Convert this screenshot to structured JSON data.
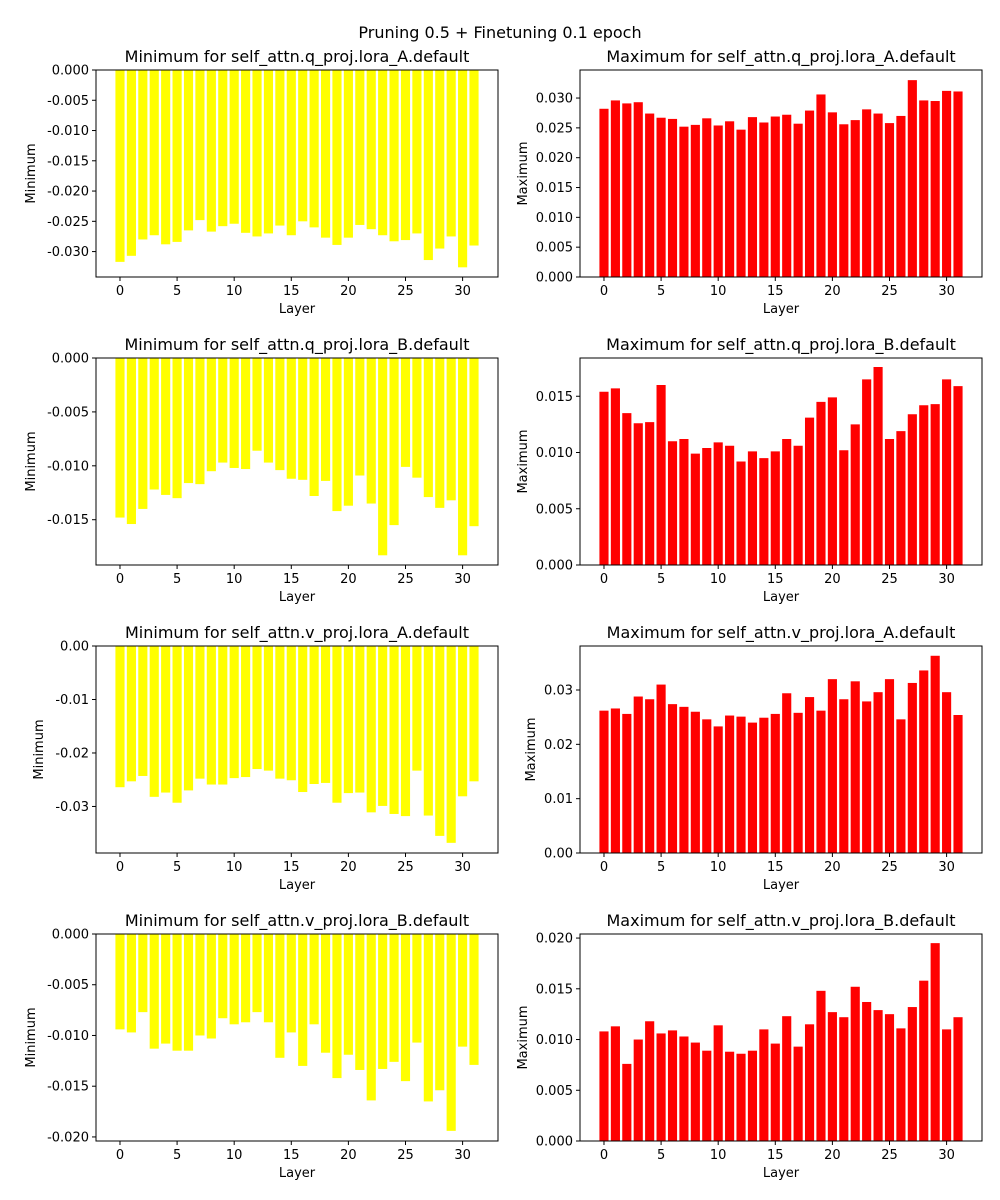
{
  "figure_title": "Pruning 0.5 + Finetuning 0.1 epoch",
  "chart_data": [
    {
      "type": "bar",
      "title": "Minimum for self_attn.q_proj.lora_A.default",
      "xlabel": "Layer",
      "ylabel": "Minimum",
      "color": "#ffff00",
      "x": [
        0,
        1,
        2,
        3,
        4,
        5,
        6,
        7,
        8,
        9,
        10,
        11,
        12,
        13,
        14,
        15,
        16,
        17,
        18,
        19,
        20,
        21,
        22,
        23,
        24,
        25,
        26,
        27,
        28,
        29,
        30,
        31
      ],
      "values": [
        -0.0317,
        -0.0307,
        -0.028,
        -0.0273,
        -0.0288,
        -0.0284,
        -0.0265,
        -0.0248,
        -0.0267,
        -0.0258,
        -0.0254,
        -0.0269,
        -0.0275,
        -0.027,
        -0.0257,
        -0.0273,
        -0.025,
        -0.026,
        -0.0277,
        -0.0289,
        -0.0277,
        -0.0256,
        -0.0263,
        -0.0273,
        -0.0283,
        -0.0281,
        -0.027,
        -0.0314,
        -0.0295,
        -0.0275,
        -0.0326,
        -0.029
      ],
      "xlim": [
        -2.1,
        33.1
      ],
      "ylim": [
        -0.0342,
        0.0
      ],
      "xticks": [
        0,
        5,
        10,
        15,
        20,
        25,
        30
      ],
      "yticks": [
        "0.000",
        "-0.005",
        "-0.010",
        "-0.015",
        "-0.020",
        "-0.025",
        "-0.030"
      ]
    },
    {
      "type": "bar",
      "title": "Maximum for self_attn.q_proj.lora_A.default",
      "xlabel": "Layer",
      "ylabel": "Maximum",
      "color": "#ff0000",
      "x": [
        0,
        1,
        2,
        3,
        4,
        5,
        6,
        7,
        8,
        9,
        10,
        11,
        12,
        13,
        14,
        15,
        16,
        17,
        18,
        19,
        20,
        21,
        22,
        23,
        24,
        25,
        26,
        27,
        28,
        29,
        30,
        31
      ],
      "values": [
        0.0282,
        0.0296,
        0.0291,
        0.0293,
        0.0274,
        0.0267,
        0.0265,
        0.0252,
        0.0255,
        0.0266,
        0.0254,
        0.0261,
        0.0247,
        0.0268,
        0.0259,
        0.0269,
        0.0272,
        0.0257,
        0.0279,
        0.0306,
        0.0276,
        0.0256,
        0.0263,
        0.0281,
        0.0274,
        0.0258,
        0.027,
        0.033,
        0.0296,
        0.0295,
        0.0312,
        0.0311
      ],
      "xlim": [
        -2.1,
        33.1
      ],
      "ylim": [
        0.0,
        0.0347
      ],
      "xticks": [
        0,
        5,
        10,
        15,
        20,
        25,
        30
      ],
      "yticks": [
        "0.000",
        "0.005",
        "0.010",
        "0.015",
        "0.020",
        "0.025",
        "0.030"
      ]
    },
    {
      "type": "bar",
      "title": "Minimum for self_attn.q_proj.lora_B.default",
      "xlabel": "Layer",
      "ylabel": "Minimum",
      "color": "#ffff00",
      "x": [
        0,
        1,
        2,
        3,
        4,
        5,
        6,
        7,
        8,
        9,
        10,
        11,
        12,
        13,
        14,
        15,
        16,
        17,
        18,
        19,
        20,
        21,
        22,
        23,
        24,
        25,
        26,
        27,
        28,
        29,
        30,
        31
      ],
      "values": [
        -0.0148,
        -0.0154,
        -0.014,
        -0.0122,
        -0.0127,
        -0.013,
        -0.0116,
        -0.0117,
        -0.0105,
        -0.0097,
        -0.0102,
        -0.0103,
        -0.0086,
        -0.0097,
        -0.0104,
        -0.0112,
        -0.0113,
        -0.0128,
        -0.0114,
        -0.0142,
        -0.0137,
        -0.0109,
        -0.0135,
        -0.0183,
        -0.0155,
        -0.0101,
        -0.0111,
        -0.0129,
        -0.0139,
        -0.0132,
        -0.0183,
        -0.0156
      ],
      "xlim": [
        -2.1,
        33.1
      ],
      "ylim": [
        -0.0192,
        0.0
      ],
      "xticks": [
        0,
        5,
        10,
        15,
        20,
        25,
        30
      ],
      "yticks": [
        "0.000",
        "-0.005",
        "-0.010",
        "-0.015"
      ]
    },
    {
      "type": "bar",
      "title": "Maximum for self_attn.q_proj.lora_B.default",
      "xlabel": "Layer",
      "ylabel": "Maximum",
      "color": "#ff0000",
      "x": [
        0,
        1,
        2,
        3,
        4,
        5,
        6,
        7,
        8,
        9,
        10,
        11,
        12,
        13,
        14,
        15,
        16,
        17,
        18,
        19,
        20,
        21,
        22,
        23,
        24,
        25,
        26,
        27,
        28,
        29,
        30,
        31
      ],
      "values": [
        0.0154,
        0.0157,
        0.0135,
        0.0126,
        0.0127,
        0.016,
        0.011,
        0.0112,
        0.0099,
        0.0104,
        0.0109,
        0.0106,
        0.0092,
        0.0101,
        0.0095,
        0.0101,
        0.0112,
        0.0106,
        0.0131,
        0.0145,
        0.0149,
        0.0102,
        0.0125,
        0.0165,
        0.0176,
        0.0112,
        0.0119,
        0.0134,
        0.0142,
        0.0143,
        0.0165,
        0.0159
      ],
      "xlim": [
        -2.1,
        33.1
      ],
      "ylim": [
        0.0,
        0.0184
      ],
      "xticks": [
        0,
        5,
        10,
        15,
        20,
        25,
        30
      ],
      "yticks": [
        "0.000",
        "0.005",
        "0.010",
        "0.015"
      ]
    },
    {
      "type": "bar",
      "title": "Minimum for self_attn.v_proj.lora_A.default",
      "xlabel": "Layer",
      "ylabel": "Minimum",
      "color": "#ffff00",
      "x": [
        0,
        1,
        2,
        3,
        4,
        5,
        6,
        7,
        8,
        9,
        10,
        11,
        12,
        13,
        14,
        15,
        16,
        17,
        18,
        19,
        20,
        21,
        22,
        23,
        24,
        25,
        26,
        27,
        28,
        29,
        30,
        31
      ],
      "values": [
        -0.0264,
        -0.0253,
        -0.0243,
        -0.0282,
        -0.0274,
        -0.0293,
        -0.027,
        -0.0248,
        -0.0259,
        -0.0259,
        -0.0247,
        -0.0245,
        -0.023,
        -0.0233,
        -0.0248,
        -0.0251,
        -0.0273,
        -0.0258,
        -0.0256,
        -0.0293,
        -0.0275,
        -0.0274,
        -0.0311,
        -0.0299,
        -0.0314,
        -0.0318,
        -0.0233,
        -0.0317,
        -0.0355,
        -0.0368,
        -0.0281,
        -0.0253
      ],
      "xlim": [
        -2.1,
        33.1
      ],
      "ylim": [
        -0.0387,
        0.0
      ],
      "xticks": [
        0,
        5,
        10,
        15,
        20,
        25,
        30
      ],
      "yticks": [
        "0.00",
        "-0.01",
        "-0.02",
        "-0.03"
      ]
    },
    {
      "type": "bar",
      "title": "Maximum for self_attn.v_proj.lora_A.default",
      "xlabel": "Layer",
      "ylabel": "Maximum",
      "color": "#ff0000",
      "x": [
        0,
        1,
        2,
        3,
        4,
        5,
        6,
        7,
        8,
        9,
        10,
        11,
        12,
        13,
        14,
        15,
        16,
        17,
        18,
        19,
        20,
        21,
        22,
        23,
        24,
        25,
        26,
        27,
        28,
        29,
        30,
        31
      ],
      "values": [
        0.0262,
        0.0266,
        0.0256,
        0.0288,
        0.0283,
        0.031,
        0.0274,
        0.0269,
        0.026,
        0.0246,
        0.0233,
        0.0253,
        0.0251,
        0.024,
        0.0249,
        0.0256,
        0.0294,
        0.0258,
        0.0287,
        0.0262,
        0.032,
        0.0283,
        0.0316,
        0.0279,
        0.0296,
        0.032,
        0.0246,
        0.0313,
        0.0336,
        0.0363,
        0.0296,
        0.0254
      ],
      "xlim": [
        -2.1,
        33.1
      ],
      "ylim": [
        0.0,
        0.0381
      ],
      "xticks": [
        0,
        5,
        10,
        15,
        20,
        25,
        30
      ],
      "yticks": [
        "0.00",
        "0.01",
        "0.02",
        "0.03"
      ]
    },
    {
      "type": "bar",
      "title": "Minimum for self_attn.v_proj.lora_B.default",
      "xlabel": "Layer",
      "ylabel": "Minimum",
      "color": "#ffff00",
      "x": [
        0,
        1,
        2,
        3,
        4,
        5,
        6,
        7,
        8,
        9,
        10,
        11,
        12,
        13,
        14,
        15,
        16,
        17,
        18,
        19,
        20,
        21,
        22,
        23,
        24,
        25,
        26,
        27,
        28,
        29,
        30,
        31
      ],
      "values": [
        -0.0094,
        -0.0097,
        -0.0077,
        -0.0113,
        -0.0108,
        -0.0115,
        -0.0115,
        -0.01,
        -0.0103,
        -0.0083,
        -0.0089,
        -0.0087,
        -0.0077,
        -0.0087,
        -0.0122,
        -0.0097,
        -0.013,
        -0.0089,
        -0.0117,
        -0.0142,
        -0.0119,
        -0.0134,
        -0.0164,
        -0.0133,
        -0.0126,
        -0.0145,
        -0.0107,
        -0.0165,
        -0.0154,
        -0.0194,
        -0.0111,
        -0.0129
      ],
      "xlim": [
        -2.1,
        33.1
      ],
      "ylim": [
        -0.0204,
        0.0
      ],
      "xticks": [
        0,
        5,
        10,
        15,
        20,
        25,
        30
      ],
      "yticks": [
        "0.000",
        "-0.005",
        "-0.010",
        "-0.015",
        "-0.020"
      ]
    },
    {
      "type": "bar",
      "title": "Maximum for self_attn.v_proj.lora_B.default",
      "xlabel": "Layer",
      "ylabel": "Maximum",
      "color": "#ff0000",
      "x": [
        0,
        1,
        2,
        3,
        4,
        5,
        6,
        7,
        8,
        9,
        10,
        11,
        12,
        13,
        14,
        15,
        16,
        17,
        18,
        19,
        20,
        21,
        22,
        23,
        24,
        25,
        26,
        27,
        28,
        29,
        30,
        31
      ],
      "values": [
        0.0108,
        0.0113,
        0.0076,
        0.01,
        0.0118,
        0.0106,
        0.0109,
        0.0103,
        0.0097,
        0.0089,
        0.0114,
        0.0088,
        0.0086,
        0.0089,
        0.011,
        0.0096,
        0.0123,
        0.0093,
        0.0115,
        0.0148,
        0.0127,
        0.0122,
        0.0152,
        0.0137,
        0.0129,
        0.0125,
        0.0111,
        0.0132,
        0.0158,
        0.0195,
        0.011,
        0.0122
      ],
      "xlim": [
        -2.1,
        33.1
      ],
      "ylim": [
        0.0,
        0.0204
      ],
      "xticks": [
        0,
        5,
        10,
        15,
        20,
        25,
        30
      ],
      "yticks": [
        "0.000",
        "0.005",
        "0.010",
        "0.015",
        "0.020"
      ]
    }
  ]
}
